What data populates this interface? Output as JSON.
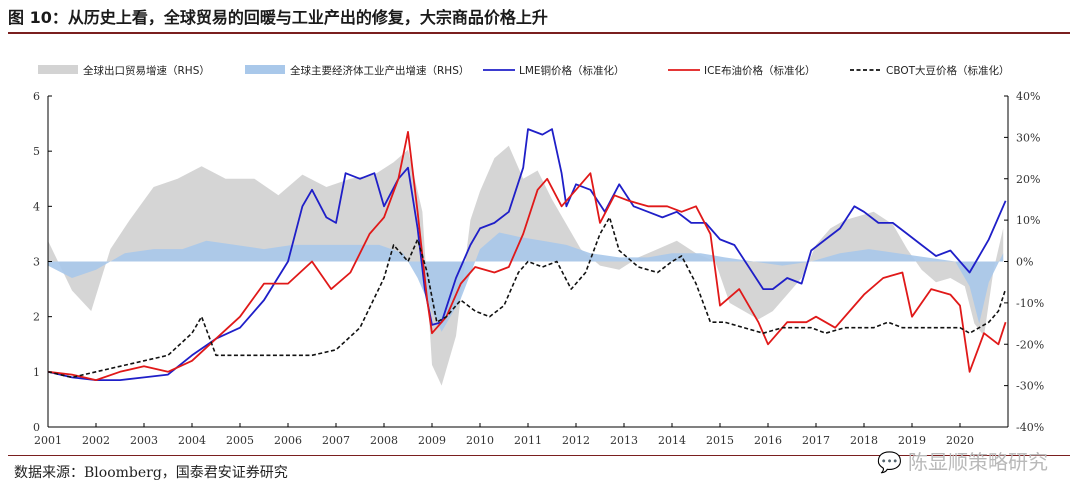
{
  "header": {
    "title": "图 10：从历史上看，全球贸易的回暖与工业产出的修复，大宗商品价格上升"
  },
  "footer": {
    "source": "数据来源：Bloomberg，国泰君安证券研究"
  },
  "watermark": {
    "text": "陈显顺策略研究",
    "icon": "wechat-icon"
  },
  "chart_data": {
    "type": "line",
    "title": "图 10：从历史上看，全球贸易的回暖与工业产出的修复，大宗商品价格上升",
    "x_range": [
      2001,
      2021
    ],
    "x_ticks": [
      "2001",
      "2002",
      "2003",
      "2004",
      "2005",
      "2006",
      "2007",
      "2008",
      "2009",
      "2010",
      "2011",
      "2012",
      "2013",
      "2014",
      "2015",
      "2016",
      "2017",
      "2018",
      "2019",
      "2020"
    ],
    "ylim_left": [
      0,
      6
    ],
    "y_ticks_left": [
      "0",
      "1",
      "2",
      "3",
      "4",
      "5",
      "6"
    ],
    "ylim_right": [
      -40,
      40
    ],
    "y_ticks_right": [
      "-40%",
      "-30%",
      "-20%",
      "-10%",
      "0%",
      "10%",
      "20%",
      "30%",
      "40%"
    ],
    "legend_position": "top",
    "colors": {
      "trade": "#d3d3d3",
      "ip": "#a9c8ea",
      "copper": "#1f1fc8",
      "brent": "#e01919",
      "soy": "#111111"
    },
    "series": [
      {
        "name": "全球出口贸易增速（RHS）",
        "type": "area",
        "axis": "right",
        "x": [
          2001,
          2001.5,
          2001.9,
          2002.3,
          2002.7,
          2003.2,
          2003.7,
          2004.2,
          2004.7,
          2005.3,
          2005.8,
          2006.3,
          2006.8,
          2007.3,
          2007.8,
          2008.2,
          2008.5,
          2008.8,
          2009.0,
          2009.2,
          2009.5,
          2009.8,
          2010.0,
          2010.3,
          2010.6,
          2010.9,
          2011.2,
          2011.5,
          2011.8,
          2012.1,
          2012.5,
          2012.9,
          2013.3,
          2013.7,
          2014.1,
          2014.5,
          2014.9,
          2015.2,
          2015.5,
          2015.8,
          2016.1,
          2016.4,
          2016.7,
          2017.0,
          2017.3,
          2017.6,
          2017.9,
          2018.2,
          2018.6,
          2018.9,
          2019.2,
          2019.5,
          2019.8,
          2020.1,
          2020.3,
          2020.5,
          2020.7,
          2020.9
        ],
        "values": [
          5,
          -7,
          -12,
          3,
          10,
          18,
          20,
          23,
          20,
          20,
          16,
          21,
          18,
          20,
          21,
          24,
          27,
          12,
          -25,
          -30,
          -18,
          10,
          17,
          25,
          28,
          20,
          22,
          15,
          9,
          3,
          -1,
          -2,
          1,
          3,
          5,
          2,
          0,
          -10,
          -12,
          -14,
          -12,
          -8,
          -4,
          4,
          8,
          10,
          11,
          12,
          9,
          3,
          -2,
          -5,
          -4,
          -6,
          -15,
          -18,
          -2,
          8
        ]
      },
      {
        "name": "全球主要经济体工业产出增速（RHS）",
        "type": "area",
        "axis": "right",
        "x": [
          2001,
          2001.5,
          2002.0,
          2002.6,
          2003.2,
          2003.8,
          2004.3,
          2004.9,
          2005.5,
          2006.1,
          2006.7,
          2007.3,
          2007.9,
          2008.4,
          2008.7,
          2009.0,
          2009.2,
          2009.6,
          2010.0,
          2010.4,
          2010.8,
          2011.3,
          2011.8,
          2012.3,
          2012.9,
          2013.5,
          2014.0,
          2014.6,
          2015.1,
          2015.7,
          2016.3,
          2016.9,
          2017.5,
          2018.1,
          2018.7,
          2019.3,
          2019.9,
          2020.2,
          2020.4,
          2020.6,
          2020.9
        ],
        "values": [
          -1,
          -4,
          -2,
          2,
          3,
          3,
          5,
          4,
          3,
          4,
          4,
          4,
          4,
          2,
          -4,
          -12,
          -17,
          -9,
          3,
          7,
          6,
          5,
          4,
          2,
          1,
          1,
          2,
          2,
          1,
          0,
          -1,
          0,
          2,
          3,
          2,
          1,
          0,
          -6,
          -15,
          -5,
          2
        ]
      },
      {
        "name": "LME铜价格（标准化）",
        "type": "line",
        "axis": "left",
        "x": [
          2001,
          2001.5,
          2002.0,
          2002.5,
          2003.0,
          2003.5,
          2004.0,
          2004.5,
          2005.0,
          2005.5,
          2006.0,
          2006.3,
          2006.5,
          2006.8,
          2007.0,
          2007.2,
          2007.5,
          2007.8,
          2008.0,
          2008.3,
          2008.5,
          2008.7,
          2008.85,
          2009.0,
          2009.2,
          2009.5,
          2009.8,
          2010.0,
          2010.3,
          2010.6,
          2010.9,
          2011.0,
          2011.3,
          2011.5,
          2011.7,
          2011.8,
          2012.0,
          2012.3,
          2012.6,
          2012.9,
          2013.2,
          2013.5,
          2013.8,
          2014.1,
          2014.4,
          2014.7,
          2015.0,
          2015.3,
          2015.6,
          2015.9,
          2016.1,
          2016.4,
          2016.7,
          2016.9,
          2017.2,
          2017.5,
          2017.8,
          2018.0,
          2018.3,
          2018.6,
          2018.9,
          2019.2,
          2019.5,
          2019.8,
          2020.0,
          2020.2,
          2020.4,
          2020.6,
          2020.8,
          2020.95
        ],
        "values": [
          1.0,
          0.9,
          0.85,
          0.85,
          0.9,
          0.95,
          1.3,
          1.6,
          1.8,
          2.3,
          3.0,
          4.0,
          4.3,
          3.8,
          3.7,
          4.6,
          4.5,
          4.6,
          4.0,
          4.5,
          4.7,
          3.6,
          2.5,
          1.85,
          1.9,
          2.7,
          3.3,
          3.6,
          3.7,
          3.9,
          4.7,
          5.4,
          5.3,
          5.4,
          4.6,
          4.0,
          4.4,
          4.3,
          3.9,
          4.4,
          4.0,
          3.9,
          3.8,
          3.9,
          3.7,
          3.7,
          3.4,
          3.3,
          2.9,
          2.5,
          2.5,
          2.7,
          2.6,
          3.2,
          3.4,
          3.6,
          4.0,
          3.9,
          3.7,
          3.7,
          3.5,
          3.3,
          3.1,
          3.2,
          3.0,
          2.8,
          3.1,
          3.4,
          3.8,
          4.1
        ]
      },
      {
        "name": "ICE布油价格（标准化）",
        "type": "line",
        "axis": "left",
        "x": [
          2001,
          2001.5,
          2002.0,
          2002.5,
          2003.0,
          2003.5,
          2004.0,
          2004.5,
          2005.0,
          2005.5,
          2006.0,
          2006.5,
          2006.9,
          2007.3,
          2007.7,
          2008.0,
          2008.3,
          2008.5,
          2008.7,
          2008.9,
          2009.0,
          2009.3,
          2009.6,
          2009.9,
          2010.3,
          2010.6,
          2010.9,
          2011.2,
          2011.4,
          2011.7,
          2012.0,
          2012.3,
          2012.5,
          2012.8,
          2013.1,
          2013.5,
          2013.9,
          2014.2,
          2014.5,
          2014.8,
          2015.0,
          2015.4,
          2015.8,
          2016.0,
          2016.4,
          2016.8,
          2017.0,
          2017.4,
          2017.8,
          2018.0,
          2018.4,
          2018.8,
          2019.0,
          2019.4,
          2019.8,
          2020.0,
          2020.2,
          2020.5,
          2020.8,
          2020.95
        ],
        "values": [
          1.0,
          0.95,
          0.85,
          1.0,
          1.1,
          1.0,
          1.2,
          1.6,
          2.0,
          2.6,
          2.6,
          3.0,
          2.5,
          2.8,
          3.5,
          3.8,
          4.5,
          5.35,
          3.9,
          2.3,
          1.7,
          2.0,
          2.6,
          2.9,
          2.8,
          2.9,
          3.5,
          4.3,
          4.5,
          4.0,
          4.3,
          4.6,
          3.7,
          4.2,
          4.1,
          4.0,
          4.0,
          3.9,
          4.0,
          3.5,
          2.2,
          2.5,
          1.9,
          1.5,
          1.9,
          1.9,
          2.0,
          1.8,
          2.2,
          2.4,
          2.7,
          2.8,
          2.0,
          2.5,
          2.4,
          2.2,
          1.0,
          1.7,
          1.5,
          1.9
        ]
      },
      {
        "name": "CBOT大豆价格（标准化）",
        "type": "line",
        "axis": "left",
        "x": [
          2001,
          2001.5,
          2002.0,
          2002.5,
          2003.0,
          2003.5,
          2004.0,
          2004.2,
          2004.5,
          2005.0,
          2005.5,
          2006.0,
          2006.5,
          2007.0,
          2007.5,
          2008.0,
          2008.2,
          2008.5,
          2008.7,
          2008.9,
          2009.1,
          2009.3,
          2009.6,
          2009.9,
          2010.2,
          2010.5,
          2010.8,
          2011.0,
          2011.3,
          2011.6,
          2011.9,
          2012.2,
          2012.5,
          2012.7,
          2012.9,
          2013.3,
          2013.7,
          2014.0,
          2014.2,
          2014.5,
          2014.8,
          2015.1,
          2015.5,
          2015.9,
          2016.3,
          2016.6,
          2016.9,
          2017.2,
          2017.6,
          2017.9,
          2018.2,
          2018.5,
          2018.8,
          2019.0,
          2019.4,
          2019.8,
          2020.0,
          2020.2,
          2020.4,
          2020.6,
          2020.8,
          2020.95
        ],
        "values": [
          1.0,
          0.9,
          1.0,
          1.1,
          1.2,
          1.3,
          1.7,
          2.0,
          1.3,
          1.3,
          1.3,
          1.3,
          1.3,
          1.4,
          1.8,
          2.7,
          3.3,
          3.0,
          3.4,
          2.8,
          1.9,
          2.0,
          2.3,
          2.1,
          2.0,
          2.2,
          2.8,
          3.0,
          2.9,
          3.0,
          2.5,
          2.8,
          3.5,
          3.8,
          3.2,
          2.9,
          2.8,
          3.0,
          3.1,
          2.6,
          1.9,
          1.9,
          1.8,
          1.7,
          1.8,
          1.8,
          1.8,
          1.7,
          1.8,
          1.8,
          1.8,
          1.9,
          1.8,
          1.8,
          1.8,
          1.8,
          1.8,
          1.7,
          1.8,
          1.9,
          2.1,
          2.5
        ]
      }
    ]
  }
}
